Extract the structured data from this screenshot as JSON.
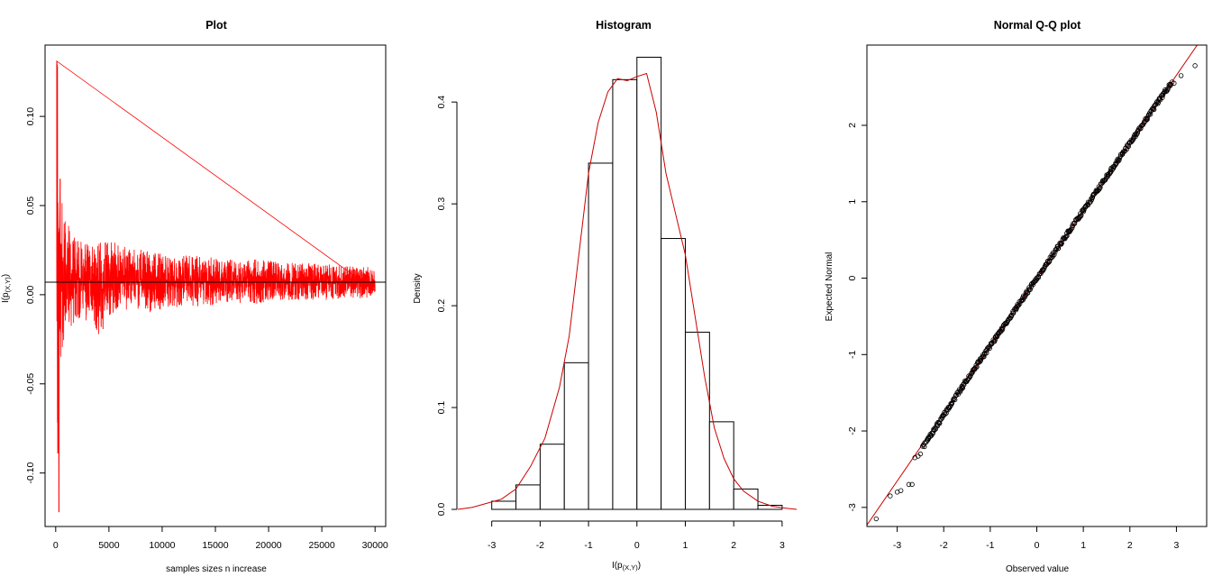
{
  "chart_data": [
    {
      "type": "line",
      "title": "Plot",
      "xlabel": "samples sizes n increase",
      "ylabel": "I(p",
      "ylabel_sub": "(X,Y)",
      "ylabel_close": ")",
      "xlim": [
        -1000,
        31000
      ],
      "ylim": [
        -0.13,
        0.14
      ],
      "xticks": [
        0,
        5000,
        10000,
        15000,
        20000,
        25000,
        30000
      ],
      "xtick_labels": [
        "0",
        "5000",
        "10000",
        "15000",
        "20000",
        "25000",
        "30000"
      ],
      "yticks": [
        -0.1,
        -0.05,
        0.0,
        0.05,
        0.1
      ],
      "ytick_labels": [
        "-0.10",
        "-0.05",
        "0.00",
        "0.05",
        "0.10"
      ],
      "reference_line": 0.007,
      "series": [
        {
          "color": "#ff0000",
          "x": [
            100,
            150,
            200,
            250,
            300,
            350,
            400,
            450,
            500,
            600,
            700,
            800,
            900,
            1000,
            1200,
            1400,
            1600,
            1800,
            2000,
            2500,
            3000,
            3500,
            4000,
            5000,
            6000,
            7000,
            8000,
            9000,
            10000,
            11000,
            12000,
            13000,
            14000,
            15000,
            16000,
            17000,
            18000,
            19000,
            20000,
            21000,
            22000,
            23000,
            24000,
            25000,
            26000,
            27000,
            28000,
            29000,
            30000
          ],
          "upper": [
            0.131,
            0.128,
            0.055,
            0.045,
            0.04,
            0.065,
            0.06,
            0.05,
            0.045,
            0.053,
            0.04,
            0.045,
            0.043,
            0.04,
            0.04,
            0.035,
            0.035,
            0.033,
            0.03,
            0.032,
            0.03,
            0.028,
            0.029,
            0.03,
            0.029,
            0.025,
            0.027,
            0.024,
            0.023,
            0.022,
            0.022,
            0.022,
            0.021,
            0.021,
            0.02,
            0.02,
            0.02,
            0.02,
            0.019,
            0.019,
            0.018,
            0.018,
            0.018,
            0.017,
            0.017,
            0.016,
            0.016,
            0.016,
            0.015
          ],
          "lower": [
            -0.02,
            -0.089,
            -0.05,
            -0.06,
            -0.122,
            -0.05,
            -0.04,
            -0.045,
            -0.03,
            -0.047,
            -0.03,
            -0.025,
            -0.025,
            -0.02,
            -0.02,
            -0.018,
            -0.02,
            -0.015,
            -0.015,
            -0.015,
            -0.015,
            -0.015,
            -0.028,
            -0.015,
            -0.01,
            -0.008,
            -0.01,
            -0.01,
            -0.008,
            -0.008,
            -0.006,
            -0.007,
            -0.006,
            -0.006,
            -0.005,
            -0.005,
            -0.005,
            -0.005,
            -0.004,
            -0.004,
            -0.004,
            -0.003,
            -0.003,
            -0.003,
            -0.003,
            -0.002,
            -0.002,
            -0.002,
            -0.002
          ]
        }
      ],
      "grid": false
    },
    {
      "type": "bar",
      "subtype": "histogram",
      "title": "Histogram",
      "xlabel": "I(p",
      "xlabel_sub": "(X,Y)",
      "xlabel_close": ")",
      "ylabel": "Density",
      "xlim": [
        -3.72,
        3.3
      ],
      "ylim": [
        0,
        0.44
      ],
      "xticks": [
        -3,
        -2,
        -1,
        0,
        1,
        2,
        3
      ],
      "xtick_labels": [
        "-3",
        "-2",
        "-1",
        "0",
        "1",
        "2",
        "3"
      ],
      "yticks": [
        0.0,
        0.1,
        0.2,
        0.3,
        0.4
      ],
      "ytick_labels": [
        "0.0",
        "0.1",
        "0.2",
        "0.3",
        "0.4"
      ],
      "bins": [
        {
          "from": -3.5,
          "to": -3.0,
          "value": 0.0
        },
        {
          "from": -3.0,
          "to": -2.5,
          "value": 0.008
        },
        {
          "from": -2.5,
          "to": -2.0,
          "value": 0.024
        },
        {
          "from": -2.0,
          "to": -1.5,
          "value": 0.064
        },
        {
          "from": -1.5,
          "to": -1.0,
          "value": 0.144
        },
        {
          "from": -1.0,
          "to": -0.5,
          "value": 0.34
        },
        {
          "from": -0.5,
          "to": 0.0,
          "value": 0.422
        },
        {
          "from": 0.0,
          "to": 0.5,
          "value": 0.444
        },
        {
          "from": 0.5,
          "to": 1.0,
          "value": 0.266
        },
        {
          "from": 1.0,
          "to": 1.5,
          "value": 0.174
        },
        {
          "from": 1.5,
          "to": 2.0,
          "value": 0.086
        },
        {
          "from": 2.0,
          "to": 2.5,
          "value": 0.02
        },
        {
          "from": 2.5,
          "to": 3.0,
          "value": 0.004
        }
      ],
      "density_curve": {
        "color": "#cc0000",
        "x": [
          -3.7,
          -3.4,
          -3.1,
          -2.8,
          -2.5,
          -2.2,
          -1.9,
          -1.6,
          -1.4,
          -1.2,
          -1.0,
          -0.8,
          -0.6,
          -0.4,
          -0.2,
          0.0,
          0.2,
          0.4,
          0.6,
          0.8,
          1.0,
          1.2,
          1.4,
          1.6,
          1.8,
          2.0,
          2.2,
          2.5,
          2.8,
          3.1,
          3.3
        ],
        "y": [
          0.0,
          0.002,
          0.006,
          0.01,
          0.02,
          0.042,
          0.07,
          0.12,
          0.17,
          0.25,
          0.33,
          0.38,
          0.41,
          0.423,
          0.421,
          0.425,
          0.428,
          0.39,
          0.33,
          0.29,
          0.25,
          0.19,
          0.13,
          0.08,
          0.05,
          0.03,
          0.018,
          0.008,
          0.003,
          0.001,
          0.0
        ]
      },
      "grid": false
    },
    {
      "type": "scatter",
      "title": "Normal Q-Q plot",
      "xlabel": "Observed value",
      "ylabel": "Expected Normal",
      "xlim": [
        -3.65,
        3.65
      ],
      "ylim": [
        -3.25,
        3.05
      ],
      "xticks": [
        -3,
        -2,
        -1,
        0,
        1,
        2,
        3
      ],
      "xtick_labels": [
        "-3",
        "-2",
        "-1",
        "0",
        "1",
        "2",
        "3"
      ],
      "yticks": [
        -3,
        -2,
        -1,
        0,
        1,
        2
      ],
      "ytick_labels": [
        "-3",
        "-2",
        "-1",
        "0",
        "1",
        "2"
      ],
      "reference_line": {
        "intercept": 0.0,
        "slope": 0.885,
        "color": "#cc0000"
      },
      "points_outliers": [
        {
          "x": -3.45,
          "y": -3.15
        },
        {
          "x": -3.15,
          "y": -2.85
        },
        {
          "x": -3.0,
          "y": -2.8
        },
        {
          "x": -2.92,
          "y": -2.78
        },
        {
          "x": -2.75,
          "y": -2.7
        },
        {
          "x": -2.68,
          "y": -2.7
        },
        {
          "x": -2.62,
          "y": -2.35
        },
        {
          "x": -2.55,
          "y": -2.33
        },
        {
          "x": -2.5,
          "y": -2.3
        },
        {
          "x": 2.95,
          "y": 2.55
        },
        {
          "x": 3.1,
          "y": 2.65
        },
        {
          "x": 3.4,
          "y": 2.78
        }
      ],
      "main_cloud": {
        "x_from": -2.45,
        "x_to": 2.9
      },
      "grid": false
    }
  ]
}
